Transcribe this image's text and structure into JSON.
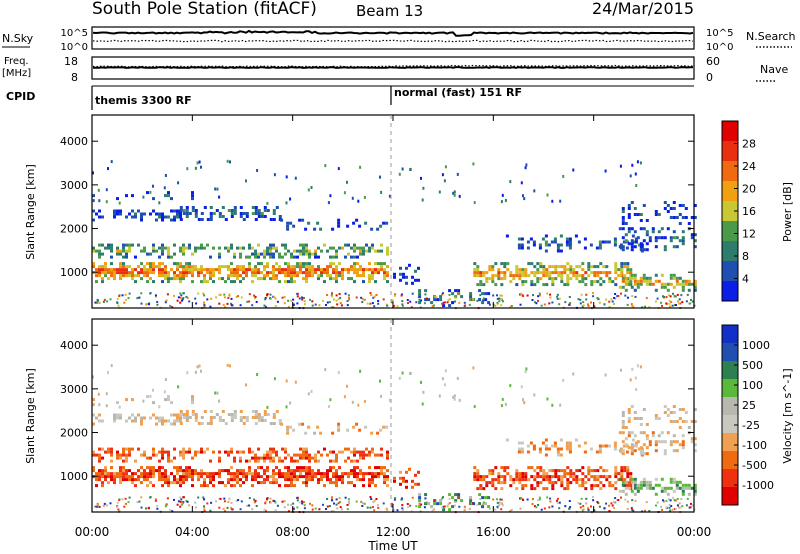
{
  "header": {
    "station": "South Pole Station (fitACF)",
    "beam": "Beam 13",
    "date": "24/Mar/2015"
  },
  "panels": {
    "nsky": {
      "label": "N.Sky",
      "tick_top": "10^5",
      "tick_bottom": "10^0"
    },
    "nsearch": {
      "label": "N.Search",
      "tick_top": "10^5",
      "tick_bottom": "10^0"
    },
    "freq": {
      "label_line1": "Freq.",
      "label_line2": "[MHz]",
      "tick_top": "18",
      "tick_bottom": "8"
    },
    "nave": {
      "label": "Nave",
      "tick_top": "60",
      "tick_bottom": "0"
    },
    "cpid": {
      "label": "CPID",
      "mode1": "themis 3300 RF",
      "mode2": "normal (fast) 151 RF"
    }
  },
  "colors": {
    "power_scale": [
      "#0a1ee6",
      "#1f4fb0",
      "#2e7d6c",
      "#4a9a4a",
      "#c8c832",
      "#f0a010",
      "#f06a10",
      "#e83010",
      "#e00000"
    ],
    "velocity_scale": [
      "#e00000",
      "#f03010",
      "#f06a10",
      "#f0a050",
      "#c8c8c0",
      "#b8b8b0",
      "#5ab83a",
      "#2e8050",
      "#1f4fb0",
      "#1030c8"
    ]
  },
  "chart_data": [
    {
      "type": "heatmap",
      "name": "power",
      "ylabel": "Slant Range [km]",
      "xlim_hours": [
        0,
        24
      ],
      "ylim_km": [
        180,
        4600
      ],
      "yticks": [
        "1000",
        "2000",
        "3000",
        "4000"
      ],
      "colorbar": {
        "label": "Power [dB]",
        "ticks": [
          "4",
          "8",
          "12",
          "16",
          "20",
          "24",
          "28"
        ]
      }
    },
    {
      "type": "heatmap",
      "name": "velocity",
      "ylabel": "Slant Range [km]",
      "xlim_hours": [
        0,
        24
      ],
      "ylim_km": [
        180,
        4600
      ],
      "yticks": [
        "1000",
        "2000",
        "3000",
        "4000"
      ],
      "colorbar": {
        "label": "Velocity [m s^-1]",
        "ticks": [
          "1000",
          "500",
          "100",
          "25",
          "-25",
          "-100",
          "-500",
          "-1000"
        ]
      }
    }
  ],
  "xaxis": {
    "label": "Time UT",
    "ticks": [
      "00:00",
      "04:00",
      "08:00",
      "12:00",
      "16:00",
      "20:00",
      "00:00"
    ]
  }
}
